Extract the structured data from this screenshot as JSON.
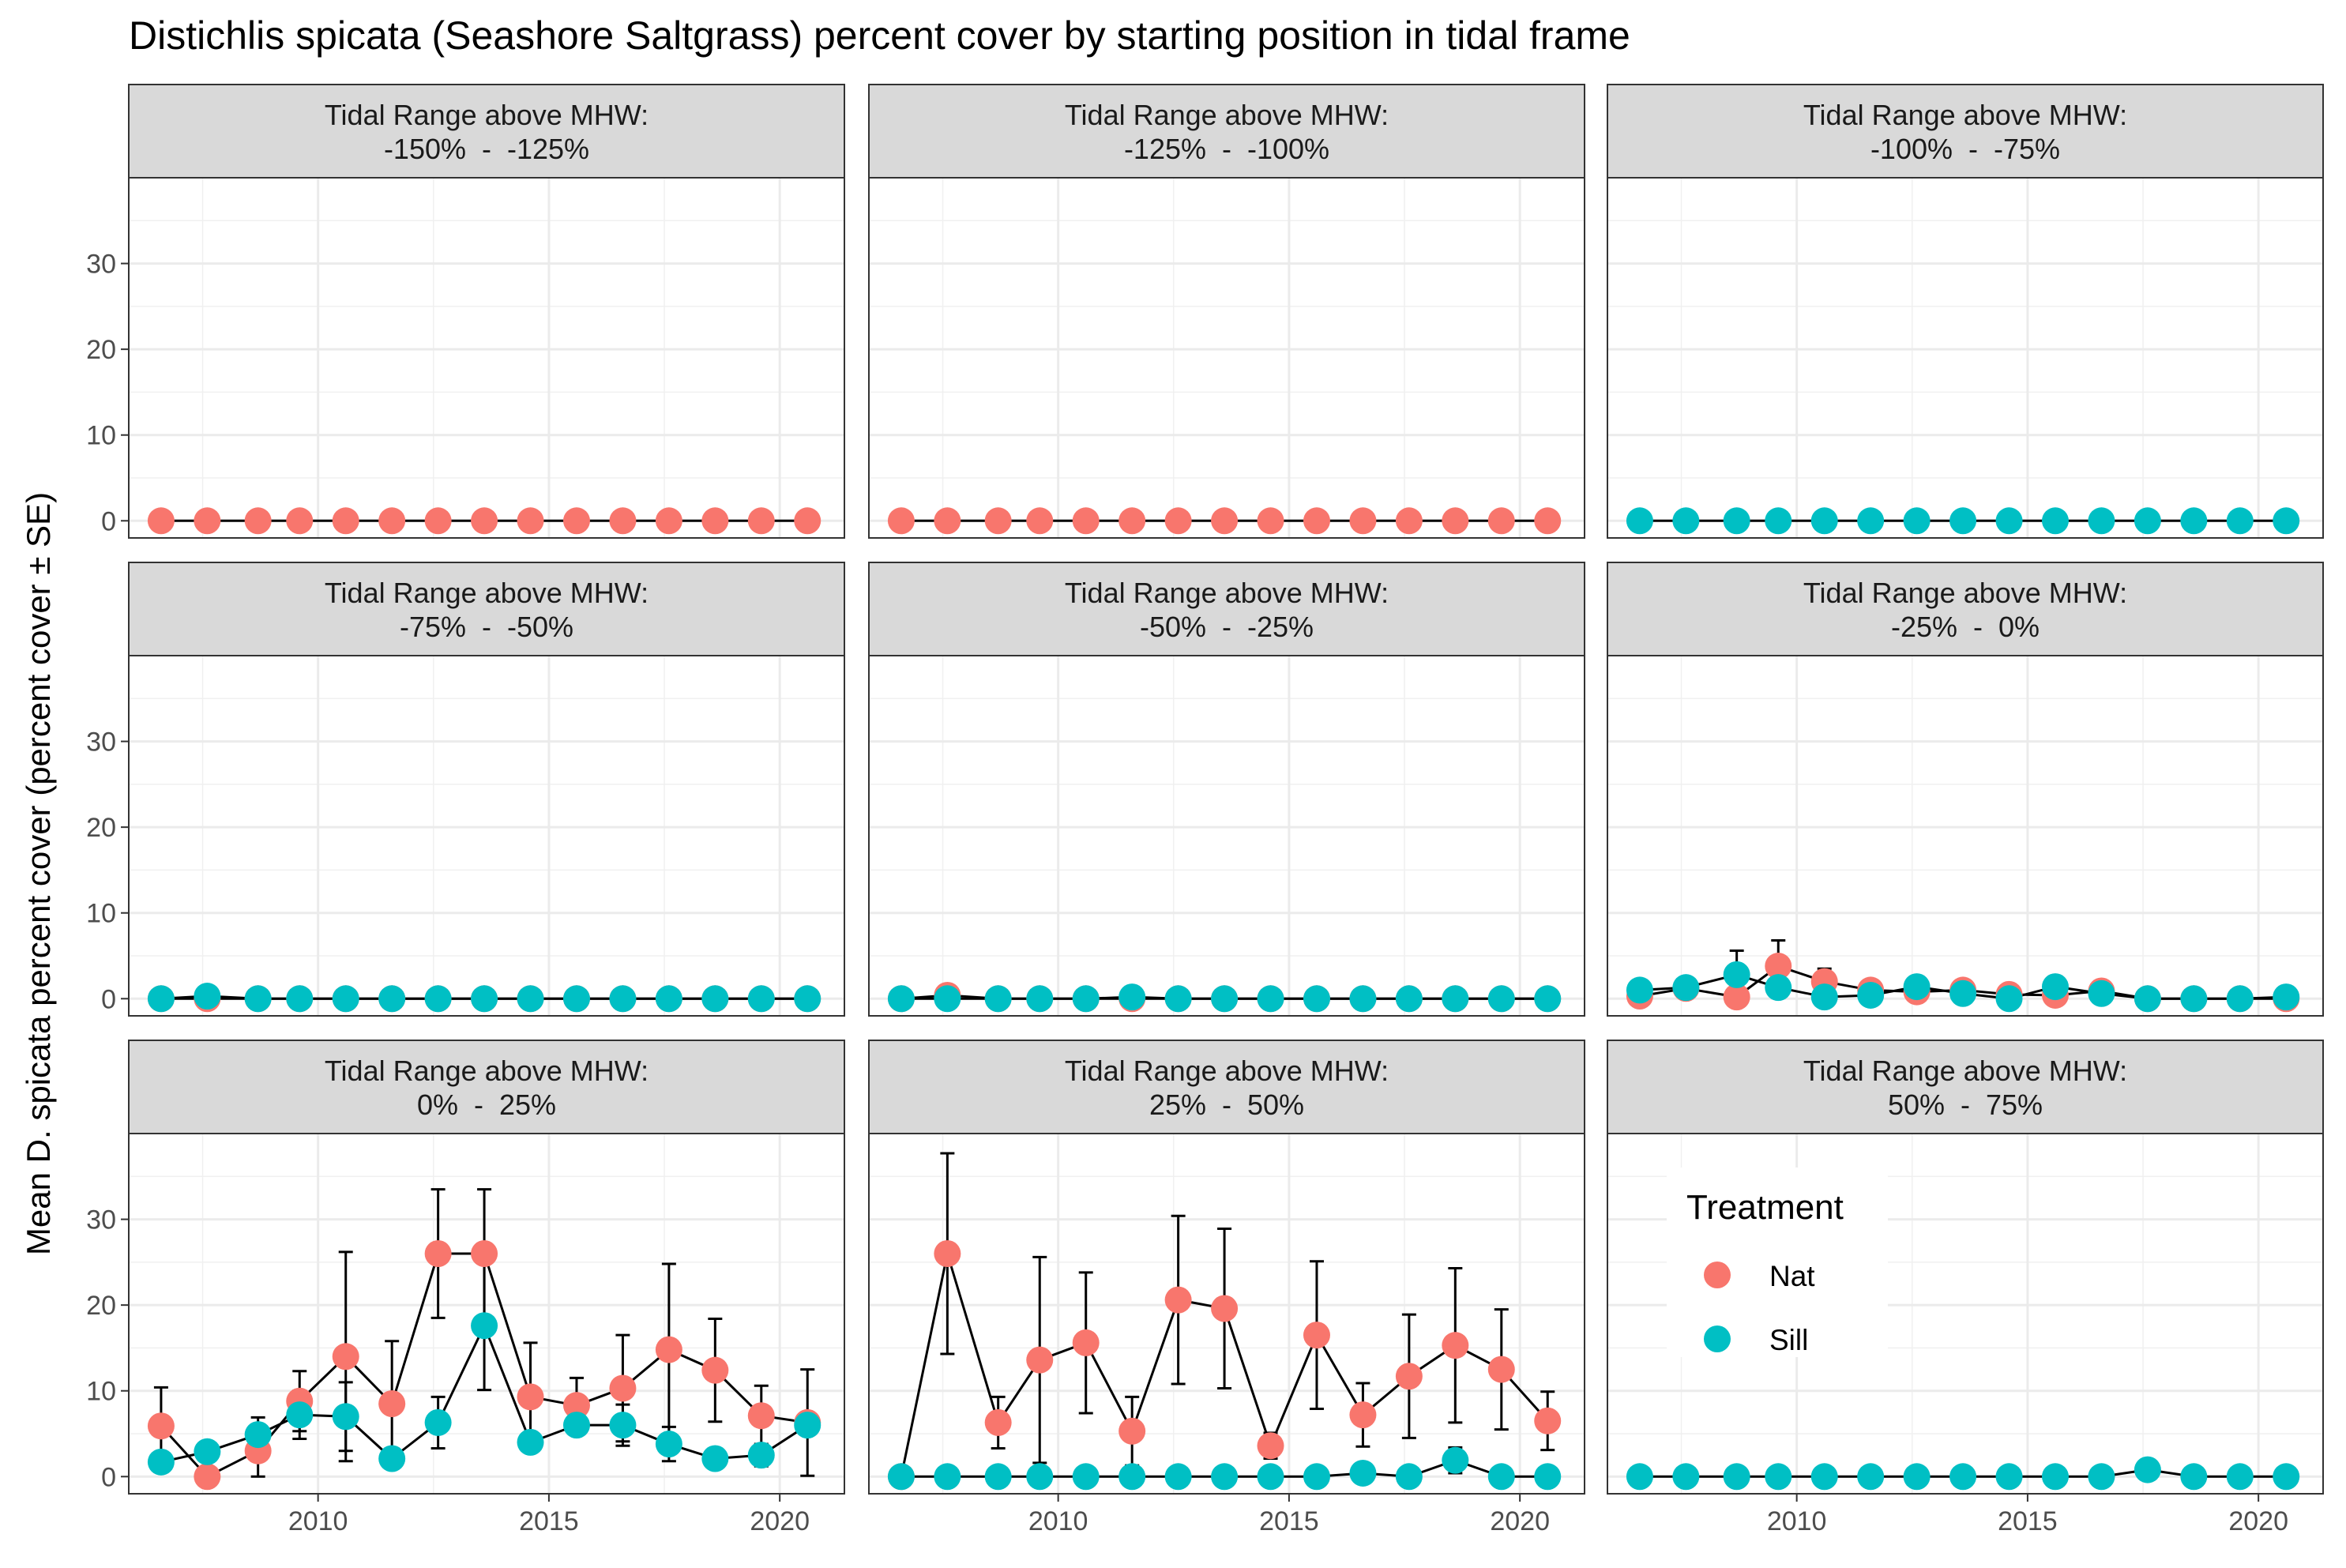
{
  "chart_data": {
    "type": "scatter",
    "title": "Distichlis spicata (Seashore Saltgrass) percent cover by starting position in tidal frame",
    "ylabel": "Mean D. spicata percent cover (percent cover ± SE)",
    "xlabel": "",
    "xlim": [
      2005.9,
      2021.4
    ],
    "ylim": [
      -2,
      40
    ],
    "x_ticks": [
      2010,
      2015,
      2020
    ],
    "y_ticks": [
      0,
      10,
      20,
      30
    ],
    "grid": true,
    "legend": {
      "title": "Treatment",
      "placement": "inside-bottom-right-panel",
      "entries": [
        {
          "name": "Nat",
          "color": "#F8766D"
        },
        {
          "name": "Sill",
          "color": "#00BFC4"
        }
      ]
    },
    "panels": [
      {
        "strip_line1": "Tidal Range above MHW:",
        "strip_line2": "-150%  -  -125%",
        "series": [
          {
            "name": "Nat",
            "color": "#F8766D",
            "x": [
              2006.6,
              2007.6,
              2008.7,
              2009.6,
              2010.6,
              2011.6,
              2012.6,
              2013.6,
              2014.6,
              2015.6,
              2016.6,
              2017.6,
              2018.6,
              2019.6,
              2020.6
            ],
            "y": [
              0,
              0,
              0,
              0,
              0,
              0,
              0,
              0,
              0,
              0,
              0,
              0,
              0,
              0,
              0
            ],
            "se": [
              0,
              0,
              0,
              0,
              0,
              0,
              0,
              0,
              0,
              0,
              0,
              0,
              0,
              0,
              0
            ]
          }
        ]
      },
      {
        "strip_line1": "Tidal Range above MHW:",
        "strip_line2": "-125%  -  -100%",
        "series": [
          {
            "name": "Nat",
            "color": "#F8766D",
            "x": [
              2006.6,
              2007.6,
              2008.7,
              2009.6,
              2010.6,
              2011.6,
              2012.6,
              2013.6,
              2014.6,
              2015.6,
              2016.6,
              2017.6,
              2018.6,
              2019.6,
              2020.6
            ],
            "y": [
              0,
              0,
              0,
              0,
              0,
              0,
              0,
              0,
              0,
              0,
              0,
              0,
              0,
              0,
              0
            ],
            "se": [
              0,
              0,
              0,
              0,
              0,
              0,
              0,
              0,
              0,
              0,
              0,
              0,
              0,
              0,
              0
            ]
          }
        ]
      },
      {
        "strip_line1": "Tidal Range above MHW:",
        "strip_line2": "-100%  -  -75%",
        "series": [
          {
            "name": "Sill",
            "color": "#00BFC4",
            "x": [
              2006.6,
              2007.6,
              2008.7,
              2009.6,
              2010.6,
              2011.6,
              2012.6,
              2013.6,
              2014.6,
              2015.6,
              2016.6,
              2017.6,
              2018.6,
              2019.6,
              2020.6
            ],
            "y": [
              0,
              0,
              0,
              0,
              0,
              0,
              0,
              0,
              0,
              0,
              0,
              0,
              0,
              0,
              0
            ],
            "se": [
              0,
              0,
              0,
              0,
              0,
              0,
              0,
              0,
              0,
              0,
              0,
              0,
              0,
              0,
              0
            ]
          }
        ]
      },
      {
        "strip_line1": "Tidal Range above MHW:",
        "strip_line2": "-75%  -  -50%",
        "series": [
          {
            "name": "Nat",
            "color": "#F8766D",
            "x": [
              2006.6,
              2007.6,
              2008.7,
              2009.6,
              2010.6,
              2011.6,
              2012.6,
              2013.6,
              2014.6,
              2015.6,
              2016.6,
              2017.6,
              2018.6,
              2019.6,
              2020.6
            ],
            "y": [
              0,
              0,
              0,
              0,
              0,
              0,
              0,
              0,
              0,
              0,
              0,
              0,
              0,
              0,
              0
            ],
            "se": [
              0,
              0,
              0,
              0,
              0,
              0,
              0,
              0,
              0,
              0,
              0,
              0,
              0,
              0,
              0
            ]
          },
          {
            "name": "Sill",
            "color": "#00BFC4",
            "x": [
              2006.6,
              2007.6,
              2008.7,
              2009.6,
              2010.6,
              2011.6,
              2012.6,
              2013.6,
              2014.6,
              2015.6,
              2016.6,
              2017.6,
              2018.6,
              2019.6,
              2020.6
            ],
            "y": [
              0,
              0.3,
              0,
              0,
              0,
              0,
              0,
              0,
              0,
              0,
              0,
              0,
              0,
              0,
              0
            ],
            "se": [
              0,
              0,
              0,
              0,
              0,
              0,
              0,
              0,
              0,
              0,
              0,
              0,
              0,
              0,
              0
            ]
          }
        ]
      },
      {
        "strip_line1": "Tidal Range above MHW:",
        "strip_line2": "-50%  -  -25%",
        "series": [
          {
            "name": "Nat",
            "color": "#F8766D",
            "x": [
              2006.6,
              2007.6,
              2008.7,
              2009.6,
              2010.6,
              2011.6,
              2012.6,
              2013.6,
              2014.6,
              2015.6,
              2016.6,
              2017.6,
              2018.6,
              2019.6,
              2020.6
            ],
            "y": [
              0,
              0.4,
              0,
              0,
              0,
              0,
              0,
              0,
              0,
              0,
              0,
              0,
              0,
              0,
              0
            ],
            "se": [
              0,
              0,
              0,
              0,
              0,
              0,
              0,
              0,
              0,
              0,
              0,
              0,
              0,
              0,
              0
            ]
          },
          {
            "name": "Sill",
            "color": "#00BFC4",
            "x": [
              2006.6,
              2007.6,
              2008.7,
              2009.6,
              2010.6,
              2011.6,
              2012.6,
              2013.6,
              2014.6,
              2015.6,
              2016.6,
              2017.6,
              2018.6,
              2019.6,
              2020.6
            ],
            "y": [
              0,
              0,
              0,
              0,
              0,
              0.2,
              0,
              0,
              0,
              0,
              0,
              0,
              0,
              0,
              0
            ],
            "se": [
              0,
              0,
              0,
              0,
              0,
              0,
              0,
              0,
              0,
              0,
              0,
              0,
              0,
              0,
              0
            ]
          }
        ]
      },
      {
        "strip_line1": "Tidal Range above MHW:",
        "strip_line2": "-25%  -  0%",
        "series": [
          {
            "name": "Nat",
            "color": "#F8766D",
            "x": [
              2006.6,
              2007.6,
              2008.7,
              2009.6,
              2010.6,
              2011.6,
              2012.6,
              2013.6,
              2014.6,
              2015.6,
              2016.6,
              2017.6,
              2018.6,
              2019.6,
              2020.6
            ],
            "y": [
              0.3,
              1.2,
              0.2,
              3.8,
              2,
              1,
              0.8,
              1,
              0.5,
              0.4,
              0.9,
              0,
              0,
              0,
              0
            ],
            "se": [
              0,
              0,
              0,
              3,
              1.5,
              0.5,
              0,
              0,
              0,
              0,
              0,
              0,
              0,
              0,
              0
            ]
          },
          {
            "name": "Sill",
            "color": "#00BFC4",
            "x": [
              2006.6,
              2007.6,
              2008.7,
              2009.6,
              2010.6,
              2011.6,
              2012.6,
              2013.6,
              2014.6,
              2015.6,
              2016.6,
              2017.6,
              2018.6,
              2019.6,
              2020.6
            ],
            "y": [
              1,
              1.3,
              2.8,
              1.3,
              0.2,
              0.4,
              1.4,
              0.6,
              0,
              1.4,
              0.6,
              0,
              0,
              0,
              0.2
            ],
            "se": [
              0,
              0,
              2.8,
              0,
              0,
              0,
              0.5,
              0,
              0,
              1.2,
              0,
              0,
              0,
              0,
              0
            ]
          }
        ]
      },
      {
        "strip_line1": "Tidal Range above MHW:",
        "strip_line2": "0%  -  25%",
        "series": [
          {
            "name": "Nat",
            "color": "#F8766D",
            "x": [
              2006.6,
              2007.6,
              2008.7,
              2009.6,
              2010.6,
              2011.6,
              2012.6,
              2013.6,
              2014.6,
              2015.6,
              2016.6,
              2017.6,
              2018.6,
              2019.6,
              2020.6
            ],
            "y": [
              5.9,
              0,
              3,
              8.8,
              14,
              8.5,
              26,
              26,
              9.3,
              8.3,
              10.3,
              14.8,
              12.4,
              7.1,
              6.3
            ],
            "se": [
              4.5,
              0,
              3,
              3.5,
              12.2,
              7.3,
              7.5,
              7.5,
              6.3,
              3.2,
              6.2,
              10,
              6,
              3.5,
              6.2
            ]
          },
          {
            "name": "Sill",
            "color": "#00BFC4",
            "x": [
              2006.6,
              2007.6,
              2008.7,
              2009.6,
              2010.6,
              2011.6,
              2012.6,
              2013.6,
              2014.6,
              2015.6,
              2016.6,
              2017.6,
              2018.6,
              2019.6,
              2020.6
            ],
            "y": [
              1.7,
              2.9,
              4.9,
              7.2,
              7,
              2.1,
              6.3,
              17.6,
              4,
              6,
              6,
              3.8,
              2.1,
              2.5,
              6
            ],
            "se": [
              0,
              0,
              2,
              2.8,
              4,
              0,
              3,
              7.5,
              0,
              0,
              2.4,
              2,
              0,
              1.3,
              0
            ]
          }
        ]
      },
      {
        "strip_line1": "Tidal Range above MHW:",
        "strip_line2": "25%  -  50%",
        "series": [
          {
            "name": "Nat",
            "color": "#F8766D",
            "x": [
              2006.6,
              2007.6,
              2008.7,
              2009.6,
              2010.6,
              2011.6,
              2012.6,
              2013.6,
              2014.6,
              2015.6,
              2016.6,
              2017.6,
              2018.6,
              2019.6,
              2020.6
            ],
            "y": [
              0,
              26,
              6.3,
              13.6,
              15.6,
              5.3,
              20.6,
              19.6,
              3.6,
              16.5,
              7.2,
              11.7,
              15.3,
              12.5,
              6.5
            ],
            "se": [
              0,
              11.7,
              3,
              12,
              8.2,
              4,
              9.8,
              9.3,
              1.5,
              8.6,
              3.7,
              7.2,
              9,
              7,
              3.4
            ]
          },
          {
            "name": "Sill",
            "color": "#00BFC4",
            "x": [
              2006.6,
              2007.6,
              2008.7,
              2009.6,
              2010.6,
              2011.6,
              2012.6,
              2013.6,
              2014.6,
              2015.6,
              2016.6,
              2017.6,
              2018.6,
              2019.6,
              2020.6
            ],
            "y": [
              0,
              0,
              0,
              0,
              0,
              0,
              0,
              0,
              0,
              0,
              0.4,
              0,
              1.9,
              0,
              0
            ],
            "se": [
              0,
              0,
              0,
              0,
              0,
              0,
              0,
              0,
              0,
              0,
              0,
              0,
              1.5,
              0,
              0
            ]
          }
        ]
      },
      {
        "strip_line1": "Tidal Range above MHW:",
        "strip_line2": "50%  -  75%",
        "series": [
          {
            "name": "Sill",
            "color": "#00BFC4",
            "x": [
              2006.6,
              2007.6,
              2008.7,
              2009.6,
              2010.6,
              2011.6,
              2012.6,
              2013.6,
              2014.6,
              2015.6,
              2016.6,
              2017.6,
              2018.6,
              2019.6,
              2020.6
            ],
            "y": [
              0,
              0,
              0,
              0,
              0,
              0,
              0,
              0,
              0,
              0,
              0,
              0.8,
              0,
              0,
              0
            ],
            "se": [
              0,
              0,
              0,
              0,
              0,
              0,
              0,
              0,
              0,
              0,
              0,
              0,
              0,
              0,
              0
            ]
          }
        ]
      }
    ]
  }
}
